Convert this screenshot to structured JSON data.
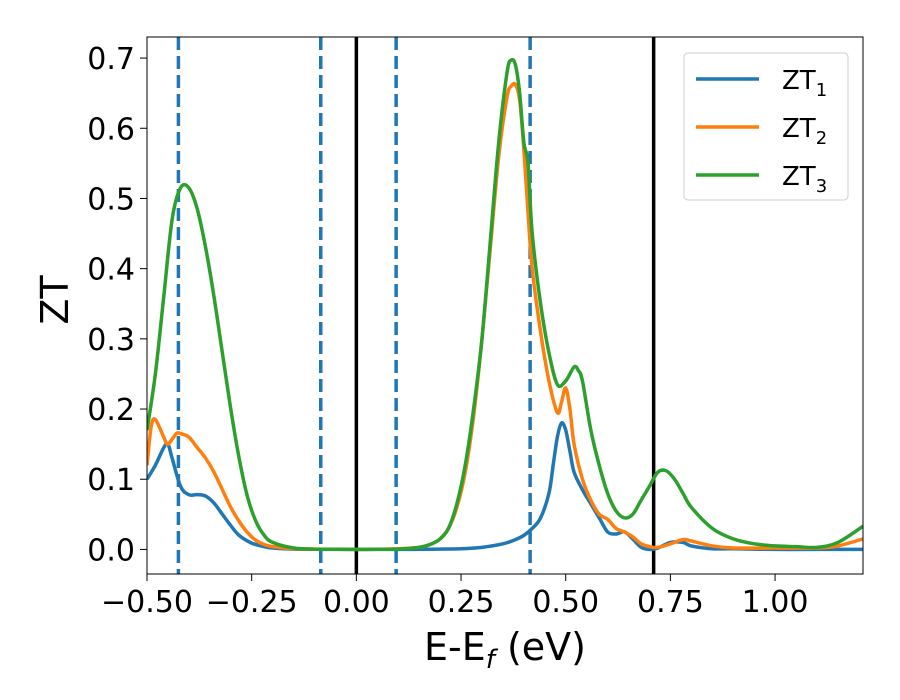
{
  "chart_data": {
    "type": "line",
    "xlabel": "E-E",
    "xlabel_sub": "f",
    "xlabel_unit": " (eV)",
    "ylabel": "ZT",
    "xlim": [
      -0.5,
      1.21
    ],
    "ylim": [
      -0.035,
      0.73
    ],
    "xticks": [
      -0.5,
      -0.25,
      0.0,
      0.25,
      0.5,
      0.75,
      1.0
    ],
    "xtick_labels": [
      "−0.50",
      "−0.25",
      "0.00",
      "0.25",
      "0.50",
      "0.75",
      "1.00"
    ],
    "yticks": [
      0.0,
      0.1,
      0.2,
      0.3,
      0.4,
      0.5,
      0.6,
      0.7
    ],
    "ytick_labels": [
      "0.0",
      "0.1",
      "0.2",
      "0.3",
      "0.4",
      "0.5",
      "0.6",
      "0.7"
    ],
    "grid": false,
    "legend_position": "top-right",
    "vlines_solid": [
      0.0,
      0.71
    ],
    "vlines_dashed": [
      -0.425,
      -0.085,
      0.095,
      0.415
    ],
    "series": [
      {
        "name": "ZT1",
        "label_main": "ZT",
        "label_sub": "1",
        "color": "#1f77b4",
        "x": [
          -0.5,
          -0.48,
          -0.46,
          -0.45,
          -0.44,
          -0.42,
          -0.4,
          -0.38,
          -0.36,
          -0.34,
          -0.32,
          -0.3,
          -0.28,
          -0.25,
          -0.22,
          -0.2,
          -0.15,
          -0.1,
          0.0,
          0.1,
          0.2,
          0.25,
          0.3,
          0.35,
          0.38,
          0.4,
          0.42,
          0.44,
          0.46,
          0.47,
          0.48,
          0.49,
          0.5,
          0.51,
          0.52,
          0.54,
          0.56,
          0.58,
          0.6,
          0.62,
          0.64,
          0.66,
          0.68,
          0.7,
          0.72,
          0.75,
          0.78,
          0.8,
          0.85,
          0.9,
          1.0,
          1.1,
          1.21
        ],
        "y": [
          0.1,
          0.12,
          0.145,
          0.15,
          0.13,
          0.09,
          0.078,
          0.078,
          0.076,
          0.066,
          0.05,
          0.034,
          0.02,
          0.009,
          0.004,
          0.002,
          0.0005,
          0.0002,
          0.0,
          0.0,
          0.0005,
          0.001,
          0.003,
          0.008,
          0.014,
          0.02,
          0.03,
          0.045,
          0.08,
          0.12,
          0.16,
          0.18,
          0.17,
          0.14,
          0.11,
          0.085,
          0.065,
          0.045,
          0.025,
          0.022,
          0.025,
          0.015,
          0.003,
          0.0,
          0.002,
          0.01,
          0.01,
          0.005,
          0.001,
          0.001,
          0.0,
          0.0,
          0.0
        ]
      },
      {
        "name": "ZT2",
        "label_main": "ZT",
        "label_sub": "2",
        "color": "#ff7f0e",
        "x": [
          -0.5,
          -0.49,
          -0.48,
          -0.46,
          -0.45,
          -0.43,
          -0.42,
          -0.4,
          -0.38,
          -0.36,
          -0.34,
          -0.32,
          -0.3,
          -0.28,
          -0.26,
          -0.24,
          -0.22,
          -0.2,
          -0.15,
          -0.1,
          -0.05,
          0.0,
          0.05,
          0.1,
          0.15,
          0.18,
          0.2,
          0.22,
          0.24,
          0.26,
          0.28,
          0.3,
          0.32,
          0.34,
          0.36,
          0.37,
          0.38,
          0.39,
          0.4,
          0.41,
          0.42,
          0.44,
          0.46,
          0.48,
          0.49,
          0.5,
          0.51,
          0.52,
          0.54,
          0.56,
          0.58,
          0.6,
          0.62,
          0.64,
          0.66,
          0.68,
          0.7,
          0.72,
          0.75,
          0.78,
          0.8,
          0.85,
          0.9,
          1.0,
          1.1,
          1.15,
          1.21
        ],
        "y": [
          0.12,
          0.175,
          0.185,
          0.16,
          0.15,
          0.165,
          0.165,
          0.16,
          0.145,
          0.13,
          0.11,
          0.085,
          0.06,
          0.04,
          0.024,
          0.013,
          0.007,
          0.004,
          0.001,
          0.0005,
          0.0002,
          0.0001,
          0.0002,
          0.001,
          0.003,
          0.008,
          0.015,
          0.03,
          0.06,
          0.11,
          0.19,
          0.3,
          0.43,
          0.56,
          0.645,
          0.66,
          0.662,
          0.64,
          0.57,
          0.48,
          0.4,
          0.31,
          0.24,
          0.195,
          0.21,
          0.23,
          0.2,
          0.15,
          0.1,
          0.07,
          0.05,
          0.043,
          0.03,
          0.025,
          0.018,
          0.008,
          0.004,
          0.003,
          0.008,
          0.014,
          0.012,
          0.005,
          0.002,
          0.002,
          0.002,
          0.005,
          0.015
        ]
      },
      {
        "name": "ZT3",
        "label_main": "ZT",
        "label_sub": "3",
        "color": "#2ca02c",
        "x": [
          -0.5,
          -0.48,
          -0.46,
          -0.44,
          -0.42,
          -0.4,
          -0.38,
          -0.36,
          -0.34,
          -0.32,
          -0.3,
          -0.28,
          -0.26,
          -0.24,
          -0.22,
          -0.2,
          -0.15,
          -0.1,
          -0.05,
          0.0,
          0.05,
          0.1,
          0.15,
          0.18,
          0.2,
          0.22,
          0.24,
          0.26,
          0.28,
          0.3,
          0.32,
          0.34,
          0.36,
          0.37,
          0.38,
          0.39,
          0.4,
          0.41,
          0.42,
          0.44,
          0.46,
          0.48,
          0.5,
          0.52,
          0.53,
          0.54,
          0.56,
          0.58,
          0.6,
          0.62,
          0.64,
          0.66,
          0.68,
          0.7,
          0.72,
          0.74,
          0.76,
          0.78,
          0.8,
          0.85,
          0.9,
          0.95,
          1.0,
          1.05,
          1.1,
          1.15,
          1.21
        ],
        "y": [
          0.17,
          0.25,
          0.36,
          0.47,
          0.515,
          0.515,
          0.485,
          0.43,
          0.36,
          0.28,
          0.2,
          0.13,
          0.075,
          0.04,
          0.02,
          0.01,
          0.002,
          0.0005,
          0.0002,
          0.0001,
          0.0002,
          0.0005,
          0.003,
          0.008,
          0.015,
          0.03,
          0.065,
          0.12,
          0.2,
          0.3,
          0.44,
          0.58,
          0.68,
          0.697,
          0.69,
          0.65,
          0.58,
          0.55,
          0.45,
          0.35,
          0.28,
          0.235,
          0.24,
          0.26,
          0.255,
          0.24,
          0.17,
          0.12,
          0.08,
          0.055,
          0.045,
          0.05,
          0.07,
          0.09,
          0.11,
          0.112,
          0.1,
          0.08,
          0.06,
          0.03,
          0.015,
          0.008,
          0.005,
          0.004,
          0.003,
          0.01,
          0.033
        ]
      }
    ]
  }
}
